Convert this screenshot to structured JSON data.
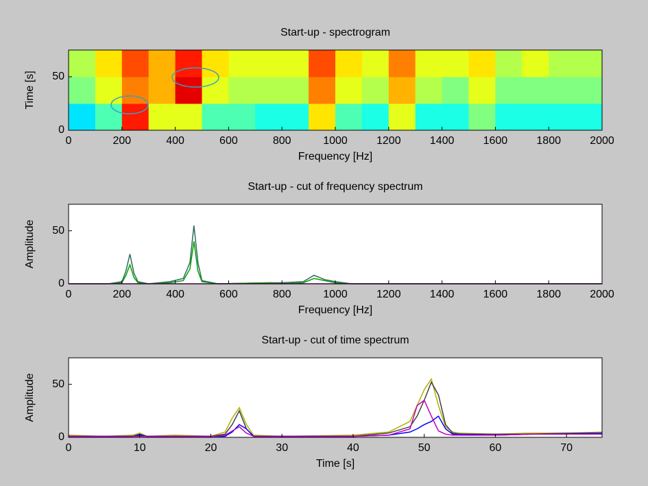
{
  "chart_data": [
    {
      "type": "heatmap",
      "title": "Start-up - spectrogram",
      "xlabel": "Frequency [Hz]",
      "ylabel": "Time [s]",
      "colormap": "jet",
      "clim": [
        0,
        1
      ],
      "xbins": [
        0,
        100,
        200,
        300,
        400,
        500,
        600,
        700,
        800,
        900,
        1000,
        1100,
        1200,
        1300,
        1400,
        1500,
        1600,
        1700,
        1800,
        1900,
        2000
      ],
      "ybins": [
        0,
        25,
        50,
        75
      ],
      "values": [
        [
          0.35,
          0.45,
          0.85,
          0.6,
          0.6,
          0.45,
          0.45,
          0.4,
          0.4,
          0.65,
          0.45,
          0.4,
          0.6,
          0.4,
          0.4,
          0.5,
          0.4,
          0.4,
          0.4,
          0.4
        ],
        [
          0.5,
          0.6,
          0.75,
          0.7,
          0.9,
          0.6,
          0.55,
          0.55,
          0.55,
          0.75,
          0.6,
          0.55,
          0.7,
          0.55,
          0.5,
          0.6,
          0.5,
          0.5,
          0.5,
          0.5
        ],
        [
          0.55,
          0.65,
          0.8,
          0.7,
          0.85,
          0.65,
          0.6,
          0.6,
          0.6,
          0.8,
          0.65,
          0.6,
          0.75,
          0.6,
          0.6,
          0.65,
          0.55,
          0.6,
          0.55,
          0.55
        ]
      ],
      "xlim": [
        0,
        2000
      ],
      "ylim": [
        0,
        75
      ],
      "xticks": [
        0,
        200,
        400,
        600,
        800,
        1000,
        1200,
        1400,
        1600,
        1800,
        2000
      ],
      "yticks": [
        0,
        50
      ]
    },
    {
      "type": "line",
      "title": "Start-up - cut of frequency spectrum",
      "xlabel": "Frequency [Hz]",
      "ylabel": "Amplitude",
      "x": [
        0,
        150,
        200,
        215,
        230,
        245,
        260,
        300,
        380,
        430,
        455,
        470,
        485,
        500,
        560,
        760,
        800,
        880,
        920,
        960,
        1000,
        1060,
        2000
      ],
      "series": [
        {
          "color": "#2e6b5e",
          "values": [
            0,
            0,
            2,
            12,
            28,
            10,
            2,
            0,
            2,
            5,
            20,
            55,
            20,
            3,
            0,
            1,
            1,
            2,
            8,
            4,
            2,
            0,
            0
          ]
        },
        {
          "color": "#00a000",
          "values": [
            0,
            0,
            1,
            8,
            18,
            6,
            1,
            0,
            1,
            3,
            14,
            40,
            12,
            2,
            0,
            1,
            0,
            1,
            5,
            3,
            1,
            0,
            0
          ]
        },
        {
          "color": "#c000c0",
          "values": [
            0,
            0,
            0,
            0,
            0,
            0,
            0,
            0,
            0,
            0,
            0,
            0,
            0,
            0,
            0,
            0,
            0,
            0,
            0,
            0,
            0,
            0,
            0
          ]
        }
      ],
      "xlim": [
        0,
        2000
      ],
      "ylim": [
        0,
        75
      ],
      "xticks": [
        0,
        200,
        400,
        600,
        800,
        1000,
        1200,
        1400,
        1600,
        1800,
        2000
      ],
      "yticks": [
        0,
        50
      ]
    },
    {
      "type": "line",
      "title": "Start-up - cut of time spectrum",
      "xlabel": "Time [s]",
      "ylabel": "Amplitude",
      "x": [
        0,
        5,
        9,
        10,
        11,
        15,
        20,
        22,
        23,
        24,
        25,
        26,
        30,
        40,
        45,
        48,
        49,
        50,
        51,
        52,
        53,
        54,
        55,
        60,
        65,
        70,
        75
      ],
      "series": [
        {
          "color": "#b0b000",
          "values": [
            2,
            1,
            2,
            4,
            1,
            2,
            1,
            5,
            18,
            28,
            12,
            2,
            1,
            2,
            5,
            15,
            30,
            45,
            55,
            30,
            10,
            5,
            4,
            3,
            4,
            4,
            5
          ]
        },
        {
          "color": "#404040",
          "values": [
            1,
            1,
            1,
            3,
            1,
            1,
            1,
            3,
            12,
            25,
            8,
            1,
            1,
            1,
            4,
            10,
            20,
            35,
            52,
            40,
            12,
            4,
            3,
            3,
            3,
            4,
            4
          ]
        },
        {
          "color": "#0000ff",
          "values": [
            1,
            1,
            1,
            2,
            1,
            1,
            1,
            1,
            5,
            12,
            8,
            1,
            1,
            1,
            2,
            5,
            8,
            12,
            15,
            20,
            8,
            3,
            3,
            2,
            3,
            3,
            4
          ]
        },
        {
          "color": "#c000c0",
          "values": [
            1,
            1,
            1,
            1,
            1,
            1,
            1,
            2,
            6,
            10,
            4,
            1,
            1,
            1,
            2,
            8,
            30,
            35,
            20,
            6,
            3,
            2,
            2,
            2,
            3,
            3,
            3
          ]
        }
      ],
      "xlim": [
        0,
        75
      ],
      "ylim": [
        0,
        75
      ],
      "xticks": [
        0,
        10,
        20,
        30,
        40,
        50,
        60,
        70
      ],
      "yticks": [
        0,
        50
      ]
    }
  ]
}
